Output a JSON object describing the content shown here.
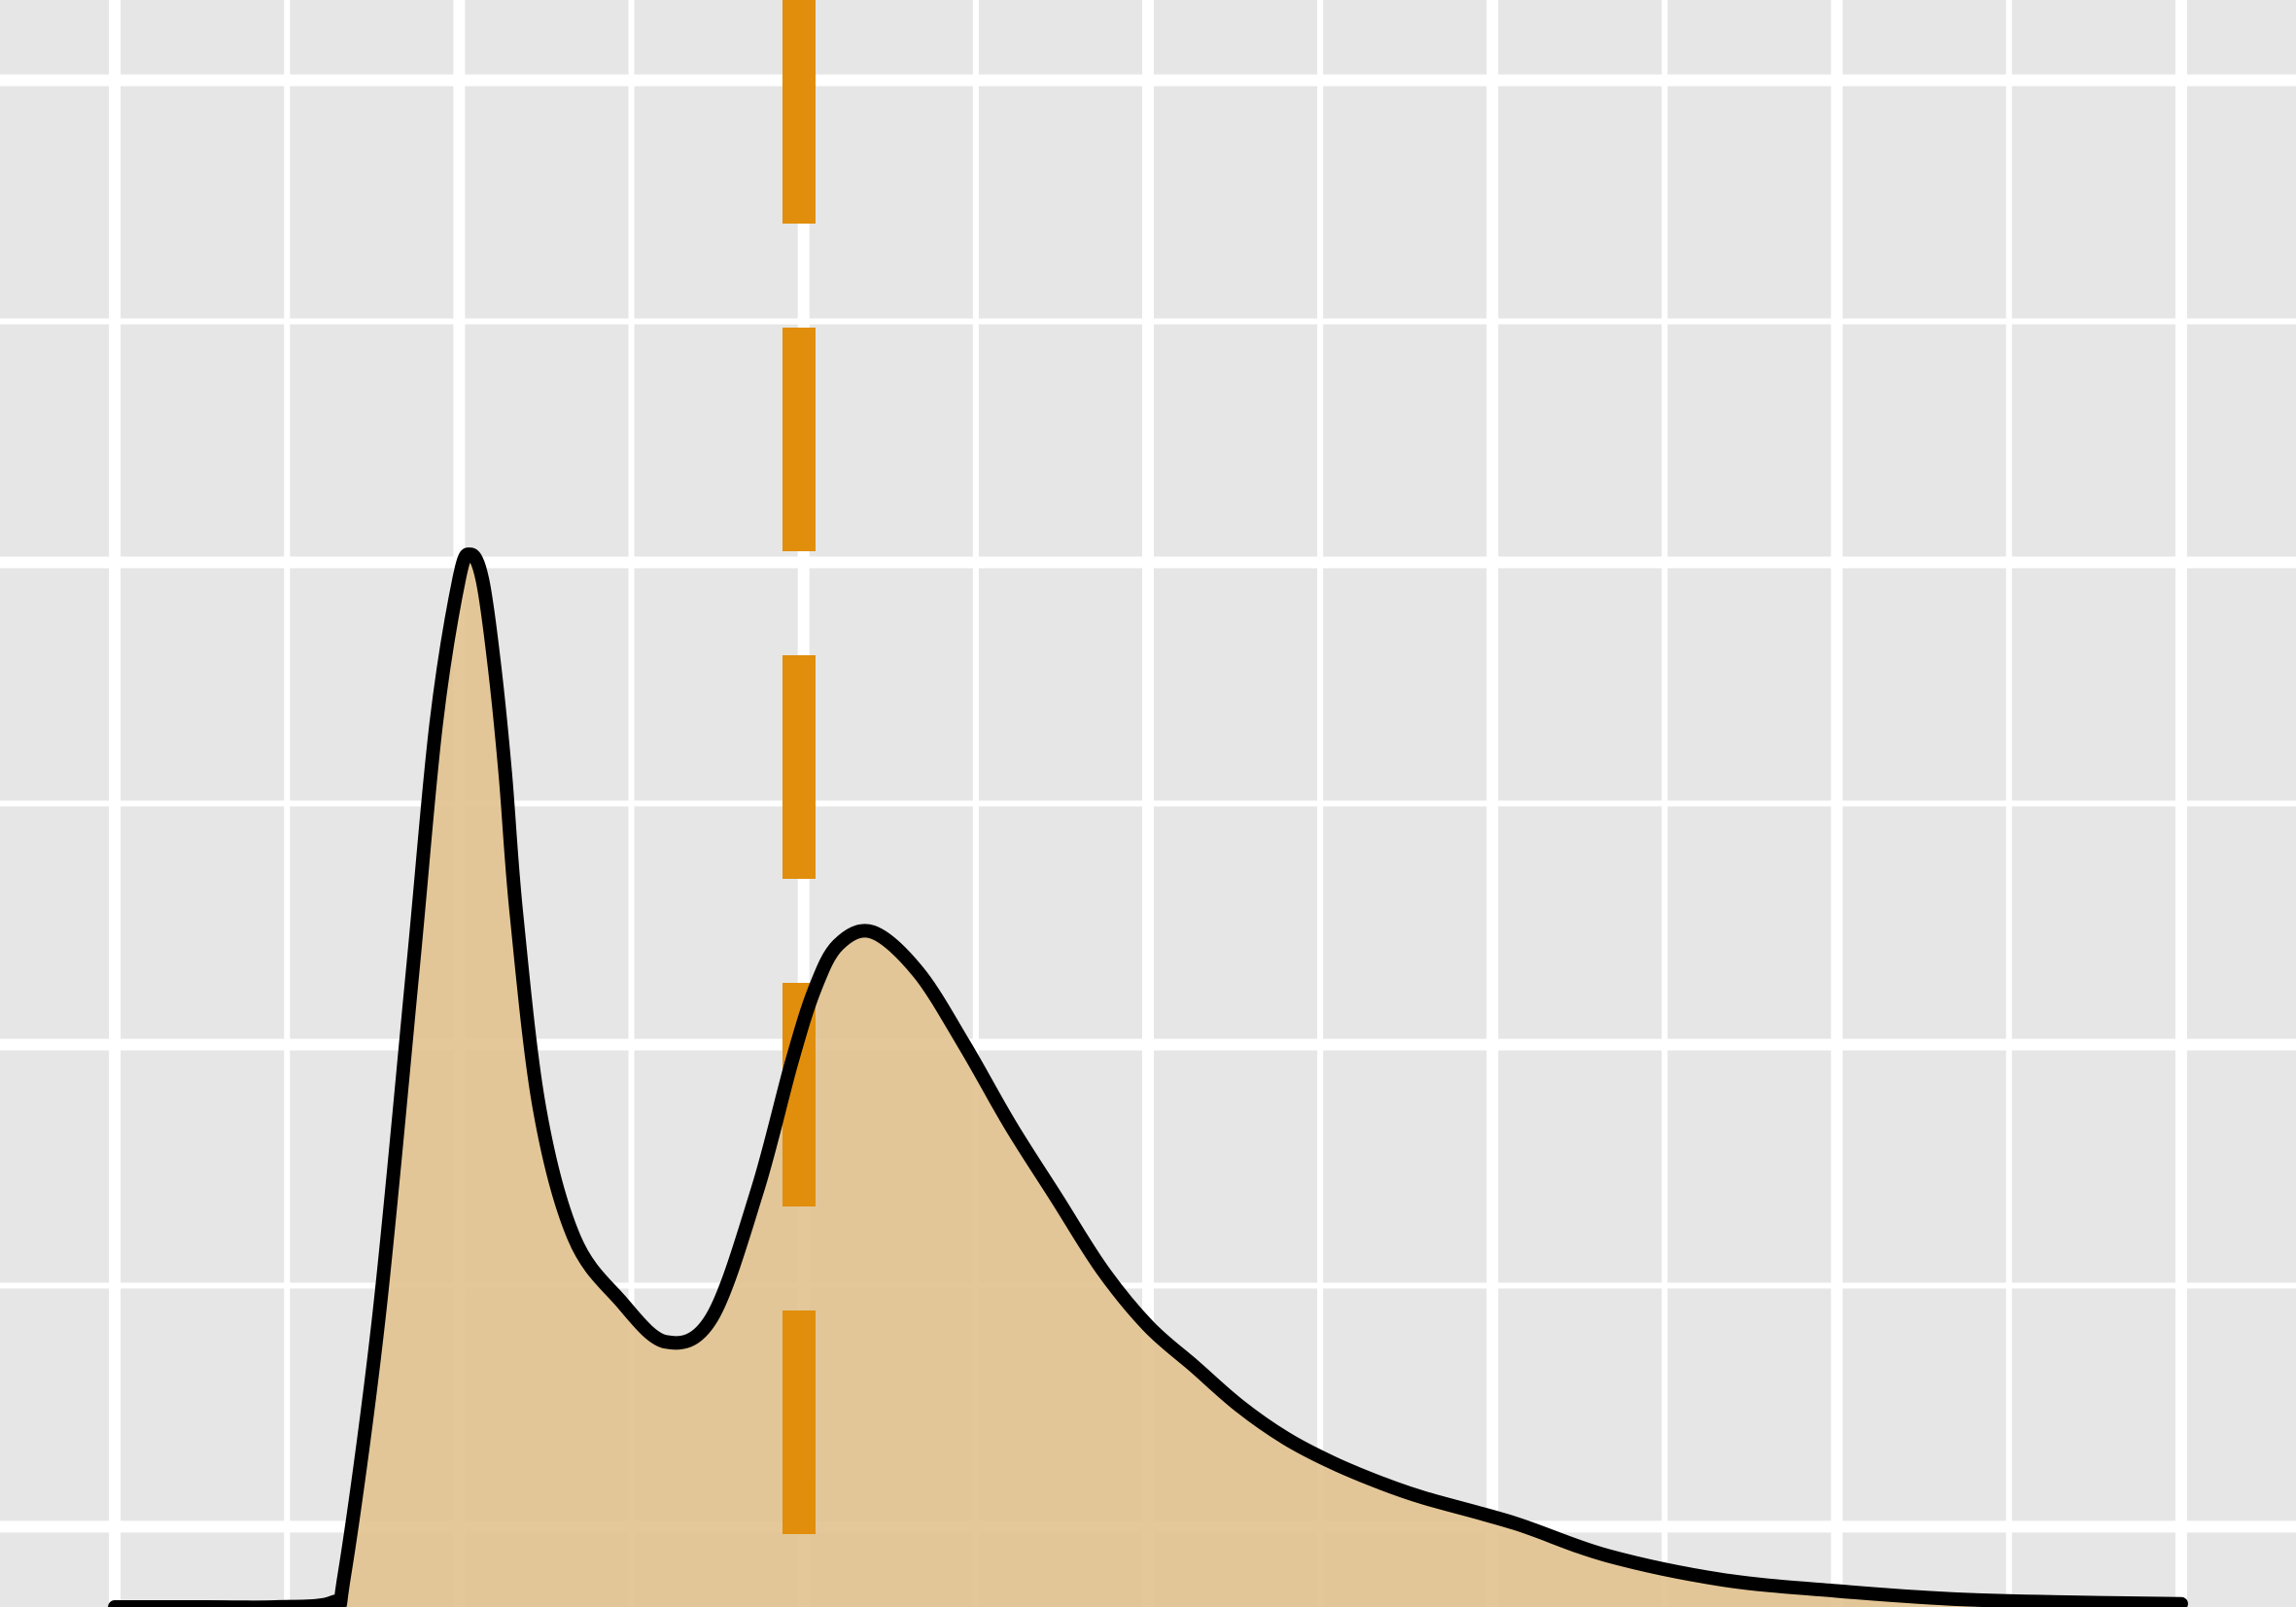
{
  "colors": {
    "panel_background": "#e6e6e6",
    "grid": "#ffffff",
    "fill": "#e2c28e",
    "curve": "#000000",
    "reference_line": "#e08e0b"
  },
  "chart_data": {
    "type": "area",
    "grid": true,
    "xlim": [
      0,
      1
    ],
    "ylim": [
      0,
      1
    ],
    "x_grid_major": [
      0.05,
      0.2,
      0.35,
      0.5,
      0.65,
      0.8,
      0.95
    ],
    "x_grid_minor": [
      0.125,
      0.275,
      0.425,
      0.575,
      0.725,
      0.875
    ],
    "y_grid_major": [
      0.05,
      0.35,
      0.65,
      0.95
    ],
    "y_grid_minor": [
      0.2,
      0.5,
      0.8
    ],
    "reference_x": 0.348,
    "series": [
      {
        "x": [
          0.05,
          0.09,
          0.12,
          0.145,
          0.15,
          0.165,
          0.18,
          0.19,
          0.2,
          0.205,
          0.21,
          0.215,
          0.22,
          0.225,
          0.235,
          0.25,
          0.27,
          0.29,
          0.31,
          0.33,
          0.345,
          0.355,
          0.365,
          0.38,
          0.4,
          0.42,
          0.44,
          0.46,
          0.48,
          0.5,
          0.52,
          0.54,
          0.56,
          0.58,
          0.6,
          0.62,
          0.66,
          0.7,
          0.75,
          0.8,
          0.85,
          0.9,
          0.95
        ],
        "y": [
          0.0,
          0.0,
          0.0,
          0.003,
          0.02,
          0.18,
          0.4,
          0.55,
          0.64,
          0.655,
          0.64,
          0.59,
          0.52,
          0.43,
          0.31,
          0.23,
          0.191,
          0.165,
          0.18,
          0.26,
          0.34,
          0.385,
          0.412,
          0.42,
          0.395,
          0.35,
          0.3,
          0.255,
          0.21,
          0.175,
          0.15,
          0.125,
          0.105,
          0.09,
          0.078,
          0.068,
          0.052,
          0.032,
          0.017,
          0.01,
          0.005,
          0.003,
          0.002
        ]
      }
    ]
  }
}
